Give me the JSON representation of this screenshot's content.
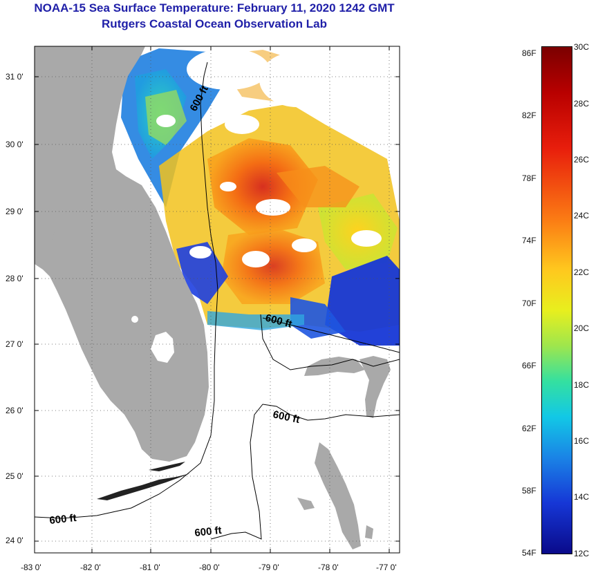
{
  "title": {
    "line1": "NOAA-15 Sea Surface Temperature:  February 11, 2020 1242 GMT",
    "line2": "Rutgers Coastal Ocean Observation Lab"
  },
  "axes": {
    "longitude_labels": [
      "-83 0'",
      "-82 0'",
      "-81 0'",
      "-80 0'",
      "-79 0'",
      "-78 0'",
      "-77 0'"
    ],
    "latitude_labels": [
      "31 0'",
      "30 0'",
      "29 0'",
      "28 0'",
      "27 0'",
      "26 0'",
      "25 0'",
      "24 0'"
    ]
  },
  "contour_labels": [
    "600 ft",
    "600 ft",
    "600 ft",
    "600 ft",
    "600 ft"
  ],
  "colorbar": {
    "fahrenheit_labels": [
      "86F",
      "82F",
      "78F",
      "74F",
      "70F",
      "66F",
      "62F",
      "58F",
      "54F"
    ],
    "celsius_labels": [
      "30C",
      "28C",
      "26C",
      "24C",
      "22C",
      "20C",
      "18C",
      "16C",
      "14C",
      "12C"
    ]
  },
  "colors": {
    "title": "#1f1fa8",
    "land": "#a9a9a9",
    "warm": "#e8501c",
    "cold": "#1637d6"
  }
}
